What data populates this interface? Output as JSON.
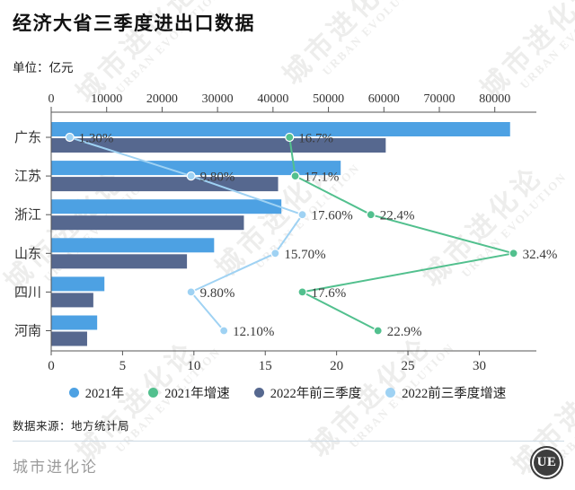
{
  "page": {
    "title": "经济大省三季度进出口数据",
    "unit_label": "单位：亿元",
    "source": "数据来源：地方统计局",
    "brand": "城市进化论",
    "logo_text": "UE"
  },
  "watermark": {
    "line1": "城市进化论",
    "line2": "URBAN EVOLUTION"
  },
  "colors": {
    "bar_2021": "#4DA1E3",
    "bar_2022q3": "#56688F",
    "line_2021_growth": "#52C08E",
    "line_2022q3_growth": "#9FD2F3",
    "axis": "#555555",
    "divider": "#ccd9e4"
  },
  "chart_data": {
    "type": "bar",
    "orientation": "horizontal",
    "title": "经济大省三季度进出口数据",
    "unit": "亿元",
    "grid": false,
    "legend_position": "bottom",
    "categories": [
      "广东",
      "江苏",
      "浙江",
      "山东",
      "四川",
      "河南"
    ],
    "series": [
      {
        "name": "2021年",
        "type": "bar",
        "axis": "value_top",
        "color": "#4DA1E3",
        "values": [
          82680,
          52130,
          41430,
          29300,
          9514,
          8208
        ]
      },
      {
        "name": "2022年前三季度",
        "type": "bar",
        "axis": "value_top",
        "color": "#56688F",
        "values": [
          60250,
          40840,
          34670,
          24400,
          7514,
          6395
        ]
      },
      {
        "name": "2021年增速",
        "type": "line",
        "axis": "pct_bottom",
        "color": "#52C08E",
        "values": [
          16.7,
          17.1,
          22.4,
          32.4,
          17.6,
          22.9
        ],
        "point_labels": [
          "16.7%",
          "17.1%",
          "22.4%",
          "32.4%",
          "17.6%",
          "22.9%"
        ]
      },
      {
        "name": "2022前三季度增速",
        "type": "line",
        "axis": "pct_bottom",
        "color": "#9FD2F3",
        "values": [
          1.3,
          9.8,
          17.6,
          15.7,
          9.8,
          12.1
        ],
        "point_labels": [
          "1.30%",
          "9.80%",
          "17.60%",
          "15.70%",
          "9.80%",
          "12.10%"
        ]
      }
    ],
    "axes": {
      "value_top": {
        "position": "top",
        "ticks": [
          0,
          10000,
          20000,
          30000,
          40000,
          50000,
          60000,
          70000,
          80000
        ],
        "min": 0,
        "max": 87500
      },
      "pct_bottom": {
        "position": "bottom",
        "ticks": [
          0,
          5,
          10,
          15,
          20,
          25,
          30
        ],
        "min": 0,
        "max": 34
      }
    },
    "legend": [
      "2021年",
      "2021年增速",
      "2022年前三季度",
      "2022前三季度增速"
    ]
  }
}
